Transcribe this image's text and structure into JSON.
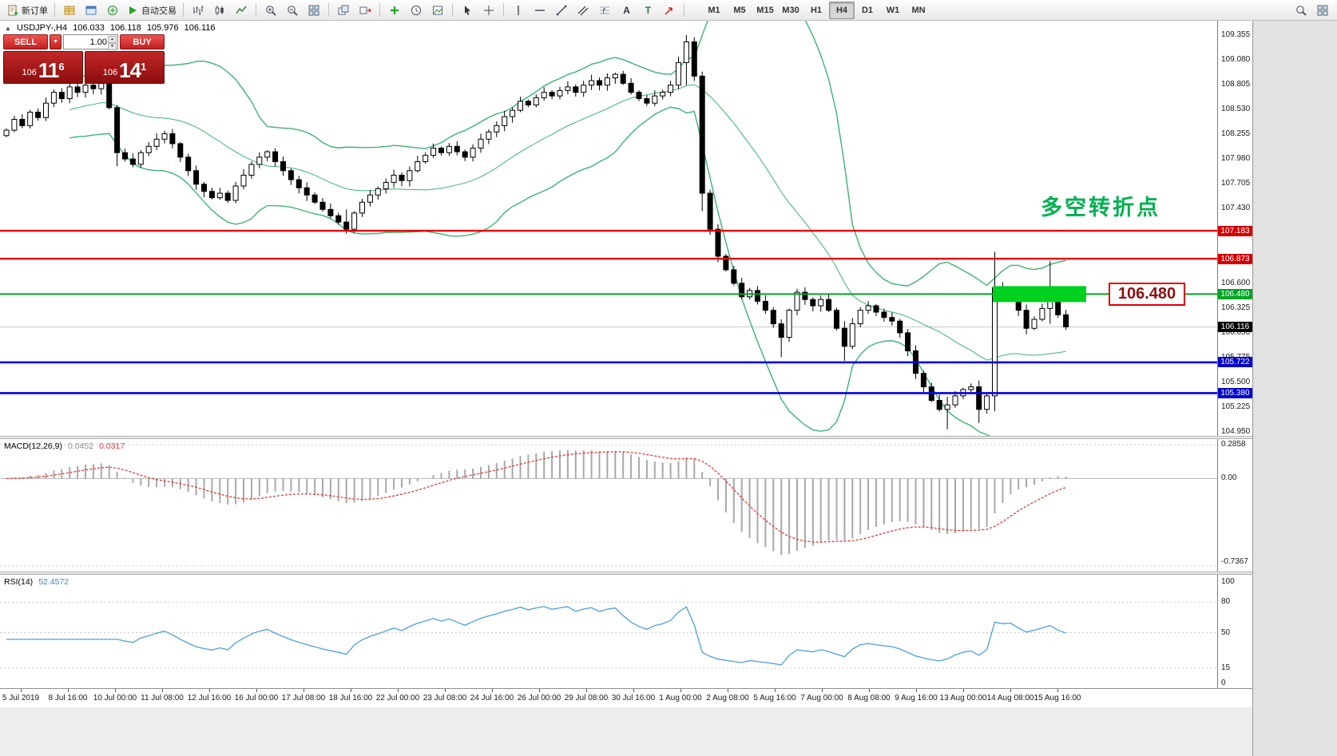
{
  "toolbar": {
    "left_items": [
      {
        "t": "btn",
        "name": "new-order",
        "icon": "doc-plus",
        "label": "新订单"
      },
      {
        "t": "sep"
      },
      {
        "t": "icon",
        "name": "market-watch",
        "icon": "grid-gold"
      },
      {
        "t": "icon",
        "name": "data-window",
        "icon": "win-blue"
      },
      {
        "t": "icon",
        "name": "navigator",
        "icon": "compass"
      },
      {
        "t": "btn",
        "name": "auto-trading",
        "icon": "play",
        "label": "自动交易"
      },
      {
        "t": "sep"
      },
      {
        "t": "icon",
        "name": "bar-chart",
        "icon": "bars"
      },
      {
        "t": "icon",
        "name": "candlestick-chart",
        "icon": "candles"
      },
      {
        "t": "icon",
        "name": "line-chart",
        "icon": "linechart"
      },
      {
        "t": "sep"
      },
      {
        "t": "icon",
        "name": "zoom-in",
        "icon": "zoom-in"
      },
      {
        "t": "icon",
        "name": "zoom-out",
        "icon": "zoom-out"
      },
      {
        "t": "icon",
        "name": "tile-windows",
        "icon": "tiles"
      },
      {
        "t": "sep"
      },
      {
        "t": "icon",
        "name": "cascade-windows",
        "icon": "cascade"
      },
      {
        "t": "icon",
        "name": "auto-scroll",
        "icon": "shift"
      },
      {
        "t": "sep"
      },
      {
        "t": "icon",
        "name": "add-indicator",
        "icon": "plus-green"
      },
      {
        "t": "icon",
        "name": "period-settings",
        "icon": "clock"
      },
      {
        "t": "icon",
        "name": "templates",
        "icon": "template"
      },
      {
        "t": "sep"
      },
      {
        "t": "icon",
        "name": "cursor-tool",
        "icon": "cursor"
      },
      {
        "t": "icon",
        "name": "crosshair-tool",
        "icon": "crosshair"
      },
      {
        "t": "sep"
      },
      {
        "t": "icon",
        "name": "vertical-line-tool",
        "icon": "vline"
      },
      {
        "t": "icon",
        "name": "horizontal-line-tool",
        "icon": "hline"
      },
      {
        "t": "icon",
        "name": "trendline-tool",
        "icon": "trend"
      },
      {
        "t": "icon",
        "name": "channel-tool",
        "icon": "channel"
      },
      {
        "t": "icon",
        "name": "fibonacci-tool",
        "icon": "fibo"
      },
      {
        "t": "icon",
        "name": "text-tool",
        "icon": "textA"
      },
      {
        "t": "icon",
        "name": "label-tool",
        "icon": "textT"
      },
      {
        "t": "icon",
        "name": "arrow-tool",
        "icon": "arrowmark"
      },
      {
        "t": "sep"
      }
    ],
    "timeframes": [
      "M1",
      "M5",
      "M15",
      "M30",
      "H1",
      "H4",
      "D1",
      "W1",
      "MN"
    ],
    "active_timeframe": "H4",
    "right_items": [
      {
        "t": "icon",
        "name": "search",
        "icon": "magnifier"
      },
      {
        "t": "icon",
        "name": "new-window",
        "icon": "tiles"
      }
    ]
  },
  "chart": {
    "symbol_line": {
      "collapse_arrow": "▲",
      "symbol": "USDJPY-,H4",
      "o": "106.033",
      "h": "106.118",
      "l": "105.976",
      "c": "106.116"
    },
    "trade_panel": {
      "sell_label": "SELL",
      "buy_label": "BUY",
      "dropdown_glyph": "▼",
      "volume": "1.00",
      "spin_up": "▲",
      "spin_down": "▼",
      "bid_prefix": "106",
      "bid_big": "11",
      "bid_sup": "6",
      "ask_prefix": "106",
      "ask_big": "14",
      "ask_sup": "1"
    },
    "annotation_text": "多空转折点",
    "price_callout": "106.480",
    "y_axis": {
      "max": 109.355,
      "min": 104.95,
      "ticks": [
        "109.355",
        "109.080",
        "108.805",
        "108.530",
        "108.255",
        "107.980",
        "107.705",
        "107.430",
        "106.600",
        "106.325",
        "106.050",
        "105.775",
        "105.500",
        "105.225",
        "104.950"
      ]
    },
    "hlines": [
      {
        "price": 107.183,
        "label": "107.183",
        "color": "red"
      },
      {
        "price": 106.873,
        "label": "106.873",
        "color": "red"
      },
      {
        "price": 106.48,
        "label": "106.480",
        "color": "green"
      },
      {
        "price": 105.722,
        "label": "105.722",
        "color": "blue"
      },
      {
        "price": 105.38,
        "label": "105.380",
        "color": "blue"
      }
    ],
    "current_price": {
      "price": 106.116,
      "label": "106.116"
    },
    "highlight_rect": {
      "x": 1243,
      "width": 117,
      "height": 20,
      "price": 106.48
    }
  },
  "chart_data": {
    "type": "candlestick",
    "symbol": "USDJPY",
    "timeframe": "H4",
    "current_bar": {
      "o": 106.033,
      "h": 106.118,
      "l": 105.976,
      "c": 106.116
    },
    "y_range": [
      104.95,
      109.355
    ],
    "first_open": 108.24,
    "closes": [
      108.3,
      108.42,
      108.35,
      108.5,
      108.44,
      108.6,
      108.72,
      108.65,
      108.78,
      108.72,
      108.8,
      108.76,
      108.82,
      108.55,
      108.05,
      107.98,
      107.92,
      108.05,
      108.12,
      108.2,
      108.26,
      108.15,
      108.0,
      107.85,
      107.7,
      107.62,
      107.55,
      107.6,
      107.52,
      107.68,
      107.8,
      107.92,
      108.0,
      108.06,
      107.95,
      107.85,
      107.75,
      107.66,
      107.58,
      107.5,
      107.42,
      107.35,
      107.28,
      107.2,
      107.38,
      107.5,
      107.58,
      107.65,
      107.72,
      107.8,
      107.74,
      107.85,
      107.95,
      108.02,
      108.1,
      108.05,
      108.12,
      108.06,
      108.0,
      108.1,
      108.2,
      108.28,
      108.35,
      108.45,
      108.52,
      108.62,
      108.58,
      108.66,
      108.72,
      108.68,
      108.74,
      108.78,
      108.72,
      108.8,
      108.85,
      108.8,
      108.88,
      108.92,
      108.82,
      108.72,
      108.65,
      108.6,
      108.68,
      108.72,
      108.8,
      109.05,
      109.28,
      108.9,
      107.6,
      107.2,
      106.9,
      106.75,
      106.6,
      106.45,
      106.52,
      106.4,
      106.3,
      106.15,
      106.0,
      106.3,
      106.5,
      106.42,
      106.35,
      106.42,
      106.3,
      106.1,
      105.9,
      106.15,
      106.3,
      106.35,
      106.28,
      106.22,
      106.18,
      106.05,
      105.85,
      105.6,
      105.45,
      105.3,
      105.2,
      105.25,
      105.35,
      105.42,
      105.45,
      105.2,
      105.35,
      106.55,
      106.48,
      106.52,
      106.3,
      106.1,
      106.2,
      106.32,
      106.45,
      106.25,
      106.116
    ],
    "wick_overrides": {
      "14": [
        108.58,
        107.9
      ],
      "43": [
        107.42,
        107.15
      ],
      "86": [
        109.355,
        108.8
      ],
      "88": [
        108.95,
        107.4
      ],
      "98": [
        106.2,
        105.78
      ],
      "106": [
        106.18,
        105.74
      ],
      "119": [
        105.34,
        104.98
      ],
      "123": [
        105.52,
        105.05
      ],
      "125": [
        106.95,
        105.18
      ],
      "132": [
        106.85,
        106.15
      ]
    },
    "indicators": {
      "bollinger_period": 20,
      "bollinger_dev": 2,
      "macd": [
        12,
        26,
        9
      ],
      "rsi": 14
    }
  },
  "macd_panel": {
    "name": "MACD(12,26,9)",
    "v1": "0.0452",
    "v2": "0.0317",
    "axis_max": "0.2858",
    "axis_zero": "0.00",
    "axis_min": "-0.7367",
    "max": 0.2858,
    "min": -0.7367
  },
  "rsi_panel": {
    "name": "RSI(14)",
    "value": "52.4572",
    "ticks": [
      100,
      80,
      50,
      15,
      0
    ],
    "levels": [
      80,
      50,
      15
    ]
  },
  "time_axis": {
    "labels": [
      "5 Jul 2019",
      "8 Jul 16:00",
      "10 Jul 00:00",
      "11 Jul 08:00",
      "12 Jul 16:00",
      "16 Jul 00:00",
      "17 Jul 08:00",
      "18 Jul 16:00",
      "22 Jul 00:00",
      "23 Jul 08:00",
      "24 Jul 16:00",
      "26 Jul 00:00",
      "29 Jul 08:00",
      "30 Jul 16:00",
      "1 Aug 00:00",
      "2 Aug 08:00",
      "5 Aug 16:00",
      "7 Aug 00:00",
      "8 Aug 08:00",
      "9 Aug 16:00",
      "13 Aug 00:00",
      "14 Aug 08:00",
      "15 Aug 16:00"
    ]
  },
  "colors": {
    "up": "#ffffff",
    "down": "#000000",
    "outline": "#000000",
    "bollinger": "#3cb371",
    "macd_hist": "#a8a8a8",
    "macd_signal": "#e53935",
    "rsi": "#4d9ee0",
    "red": "#e80000",
    "green": "#00a524",
    "blue": "#0a00e0",
    "grid": "#c8c8c8",
    "badge_red": "#d40000",
    "badge_green": "#00a524",
    "badge_blue": "#0000cc",
    "badge_black": "#000000",
    "highlight_rect": "#00d01e",
    "annotation": "#00b050",
    "callout_text": "#8b1010",
    "callout_border": "#dd0000"
  }
}
